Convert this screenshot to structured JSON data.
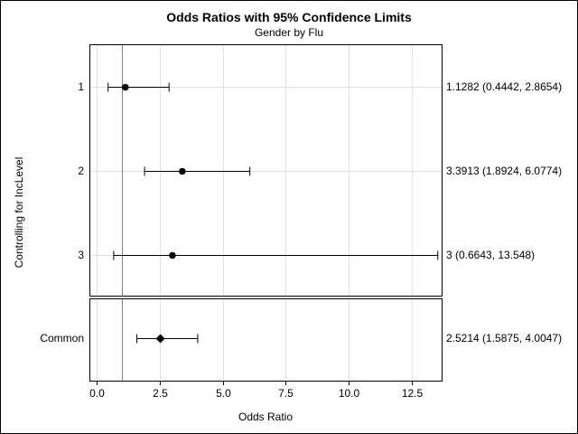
{
  "chart_data": {
    "type": "forest",
    "title": "Odds Ratios with 95% Confidence Limits",
    "subtitle": "Gender by Flu",
    "xlabel": "Odds Ratio",
    "ylabel": "Controlling for IncLevel",
    "xlim": [
      -0.3,
      13.7
    ],
    "xticks": [
      "0.0",
      "2.5",
      "5.0",
      "7.5",
      "10.0",
      "12.5"
    ],
    "xtick_values": [
      0,
      2.5,
      5,
      7.5,
      10,
      12.5
    ],
    "reference_line": 1,
    "grid": true,
    "rows": [
      {
        "label": "1",
        "estimate": 1.1282,
        "lower": 0.4442,
        "upper": 2.8654,
        "ci_text": "1.1282 (0.4442, 2.8654)",
        "marker": "circle"
      },
      {
        "label": "2",
        "estimate": 3.3913,
        "lower": 1.8924,
        "upper": 6.0774,
        "ci_text": "3.3913 (1.8924, 6.0774)",
        "marker": "circle"
      },
      {
        "label": "3",
        "estimate": 3,
        "lower": 0.6643,
        "upper": 13.548,
        "ci_text": "3 (0.6643, 13.548)",
        "marker": "circle"
      }
    ],
    "common": {
      "label": "Common",
      "estimate": 2.5214,
      "lower": 1.5875,
      "upper": 4.0047,
      "ci_text": "2.5214 (1.5875, 4.0047)",
      "marker": "diamond"
    }
  },
  "colors": {
    "grid": "#e0e0e0",
    "reference": "#808080",
    "ink": "#000000"
  }
}
